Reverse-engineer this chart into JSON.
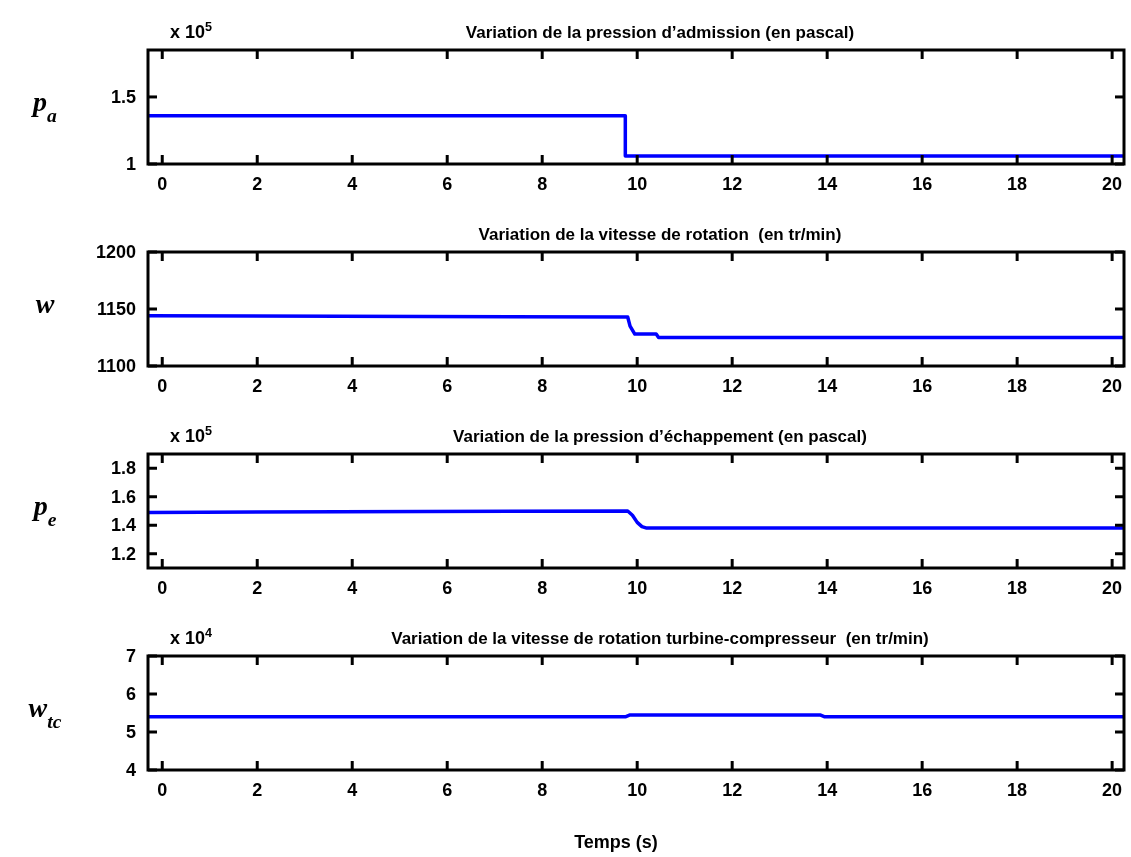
{
  "chart_data": [
    {
      "type": "line",
      "title": "Variation de la pression d’admission (en pascal)",
      "ylabel": "p$_{a}$",
      "annotations": [
        "x 10$^{5}$"
      ],
      "xlim": [
        -0.3,
        20.25
      ],
      "xticks": [
        0,
        2,
        4,
        6,
        8,
        10,
        12,
        14,
        16,
        18,
        20
      ],
      "ylim": [
        1,
        1.85
      ],
      "yticks": [
        1,
        1.5
      ],
      "grid": false,
      "series": [
        {
          "color": "#0000ff",
          "x": [
            -0.3,
            9.75,
            9.75,
            20.25
          ],
          "values": [
            1.36,
            1.36,
            1.06,
            1.06
          ]
        }
      ]
    },
    {
      "type": "line",
      "title": "Variation de la vitesse de rotation  (en tr/min)",
      "ylabel": "w",
      "xlim": [
        -0.3,
        20.25
      ],
      "xticks": [
        0,
        2,
        4,
        6,
        8,
        10,
        12,
        14,
        16,
        18,
        20
      ],
      "ylim": [
        1100,
        1200
      ],
      "yticks": [
        1100,
        1150,
        1200
      ],
      "grid": false,
      "series": [
        {
          "color": "#0000ff",
          "x": [
            -0.3,
            9.8,
            9.85,
            9.95,
            10.4,
            10.45,
            20.25
          ],
          "values": [
            1144,
            1143,
            1135,
            1128,
            1128,
            1125,
            1125
          ]
        }
      ]
    },
    {
      "type": "line",
      "title": "Variation de la pression d’échappement (en pascal)",
      "ylabel": "p$_{e}$",
      "annotations": [
        "x 10$^{5}$"
      ],
      "xlim": [
        -0.3,
        20.25
      ],
      "xticks": [
        0,
        2,
        4,
        6,
        8,
        10,
        12,
        14,
        16,
        18,
        20
      ],
      "ylim": [
        1.1,
        1.9
      ],
      "yticks": [
        1.2,
        1.4,
        1.6,
        1.8
      ],
      "grid": false,
      "series": [
        {
          "color": "#0000ff",
          "x": [
            -0.3,
            9.8,
            9.9,
            10.0,
            10.1,
            10.2,
            20.25
          ],
          "values": [
            1.49,
            1.5,
            1.47,
            1.42,
            1.39,
            1.38,
            1.38
          ]
        }
      ]
    },
    {
      "type": "line",
      "title": "Variation de la vitesse de rotation turbine-compresseur  (en tr/min)",
      "xlabel": "Temps (s)",
      "ylabel": "w$_{tc}$",
      "annotations": [
        "x 10$^{4}$"
      ],
      "xlim": [
        -0.3,
        20.25
      ],
      "xticks": [
        0,
        2,
        4,
        6,
        8,
        10,
        12,
        14,
        16,
        18,
        20
      ],
      "ylim": [
        4,
        7
      ],
      "yticks": [
        4,
        5,
        6,
        7
      ],
      "grid": false,
      "series": [
        {
          "color": "#0000ff",
          "x": [
            -0.3,
            9.75,
            9.85,
            13.85,
            13.95,
            20.25
          ],
          "values": [
            5.4,
            5.4,
            5.45,
            5.45,
            5.4,
            5.4
          ]
        }
      ]
    }
  ]
}
